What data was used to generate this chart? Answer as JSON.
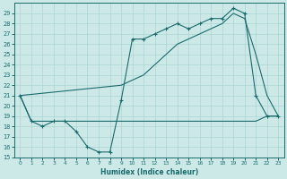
{
  "xlabel": "Humidex (Indice chaleur)",
  "xlim": [
    -0.5,
    23.5
  ],
  "ylim": [
    15,
    30
  ],
  "xticks": [
    0,
    1,
    2,
    3,
    4,
    5,
    6,
    7,
    8,
    9,
    10,
    11,
    12,
    13,
    14,
    15,
    16,
    17,
    18,
    19,
    20,
    21,
    22,
    23
  ],
  "yticks": [
    15,
    16,
    17,
    18,
    19,
    20,
    21,
    22,
    23,
    24,
    25,
    26,
    27,
    28,
    29
  ],
  "bg_color": "#cce9e8",
  "line_color": "#1a6b6b",
  "grid_color": "#aad4d3",
  "curve_x": [
    0,
    1,
    2,
    3,
    4,
    5,
    6,
    7,
    8,
    9,
    10,
    11,
    12,
    13,
    14,
    15,
    16,
    17,
    18,
    19,
    20,
    21,
    22,
    23
  ],
  "curve_y": [
    21,
    18.5,
    18,
    18.5,
    18.5,
    17.5,
    16,
    15.5,
    15.5,
    20.5,
    26.5,
    26.5,
    27,
    27.5,
    28,
    27.5,
    28,
    28.5,
    28.5,
    29.5,
    29,
    21,
    19,
    19
  ],
  "diag_x": [
    0,
    9,
    10,
    11,
    12,
    13,
    14,
    15,
    16,
    17,
    18,
    19,
    20,
    21,
    22,
    23
  ],
  "diag_y": [
    21,
    22,
    22.5,
    23,
    24,
    25,
    26,
    26.5,
    27,
    27.5,
    28,
    29,
    28.5,
    25,
    21,
    19
  ],
  "flat_x": [
    0,
    1,
    2,
    3,
    4,
    5,
    6,
    7,
    8,
    9,
    10,
    11,
    12,
    13,
    14,
    15,
    16,
    17,
    18,
    19,
    20,
    21,
    22,
    23
  ],
  "flat_y": [
    21,
    18.5,
    18.5,
    18.5,
    18.5,
    18.5,
    18.5,
    18.5,
    18.5,
    18.5,
    18.5,
    18.5,
    18.5,
    18.5,
    18.5,
    18.5,
    18.5,
    18.5,
    18.5,
    18.5,
    18.5,
    18.5,
    19,
    19
  ]
}
